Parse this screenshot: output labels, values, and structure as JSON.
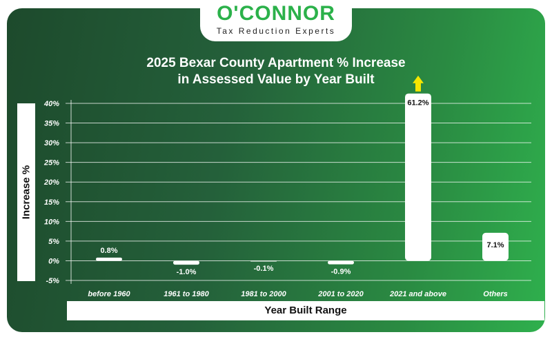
{
  "logo": {
    "brand": "O'CONNOR",
    "tagline": "Tax Reduction Experts"
  },
  "chart_data": {
    "type": "bar",
    "title": "2025 Bexar County Apartment % Increase in Assessed Value by Year Built",
    "title_lines": [
      "2025 Bexar County Apartment % Increase",
      "in Assessed Value by Year Built"
    ],
    "xlabel": "Year Built Range",
    "ylabel": "Increase %",
    "categories": [
      "before 1960",
      "1961 to 1980",
      "1981 to 2000",
      "2001 to 2020",
      "2021 and above",
      "Others"
    ],
    "values": [
      0.8,
      -1.0,
      -0.1,
      -0.9,
      61.2,
      7.1
    ],
    "data_labels": [
      "0.8%",
      "-1.0%",
      "-0.1%",
      "-0.9%",
      "61.2%",
      "7.1%"
    ],
    "ylim": [
      -5,
      40
    ],
    "yticks": [
      "-5%",
      "0%",
      "5%",
      "10%",
      "15%",
      "20%",
      "25%",
      "30%",
      "35%",
      "40%"
    ],
    "grid": true,
    "truncated_bar_indicator": "up-arrow on 2021 and above",
    "colors": {
      "bar": "#ffffff",
      "arrow": "#f5e600",
      "brand": "#2bb14a"
    }
  }
}
